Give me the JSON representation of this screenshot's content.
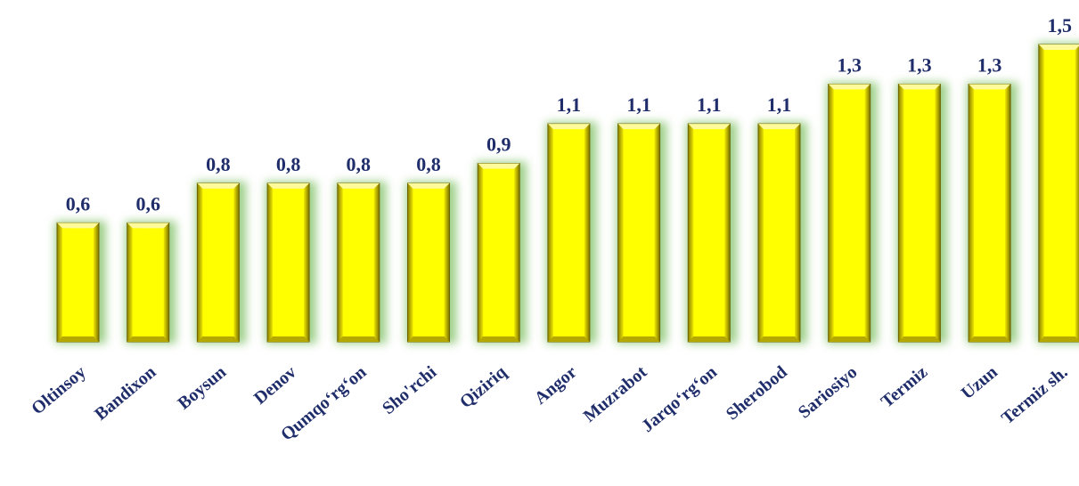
{
  "chart_data": {
    "type": "bar",
    "categories": [
      "Oltinsoy",
      "Bandixon",
      "Boysun",
      "Denov",
      "Qumqo‘rg‘on",
      "Sho'rchi",
      "Qiziriq",
      "Angor",
      "Muzrabot",
      "Jarqo‘rg‘on",
      "Sherobod",
      "Sariosiyo",
      "Termiz",
      "Uzun",
      "Termiz sh."
    ],
    "values": [
      0.6,
      0.6,
      0.8,
      0.8,
      0.8,
      0.8,
      0.9,
      1.1,
      1.1,
      1.1,
      1.1,
      1.3,
      1.3,
      1.3,
      1.5
    ],
    "value_labels": [
      "0,6",
      "0,6",
      "0,8",
      "0,8",
      "0,8",
      "0,8",
      "0,9",
      "1,1",
      "1,1",
      "1,1",
      "1,1",
      "1,3",
      "1,3",
      "1,3",
      "1,5"
    ],
    "ylim": [
      0,
      1.5
    ],
    "grid": false,
    "colors": {
      "bar": "#ffff00",
      "bar_dark": "#b5a800",
      "glow": "#9fd08a",
      "text": "#1f2d6b"
    }
  }
}
